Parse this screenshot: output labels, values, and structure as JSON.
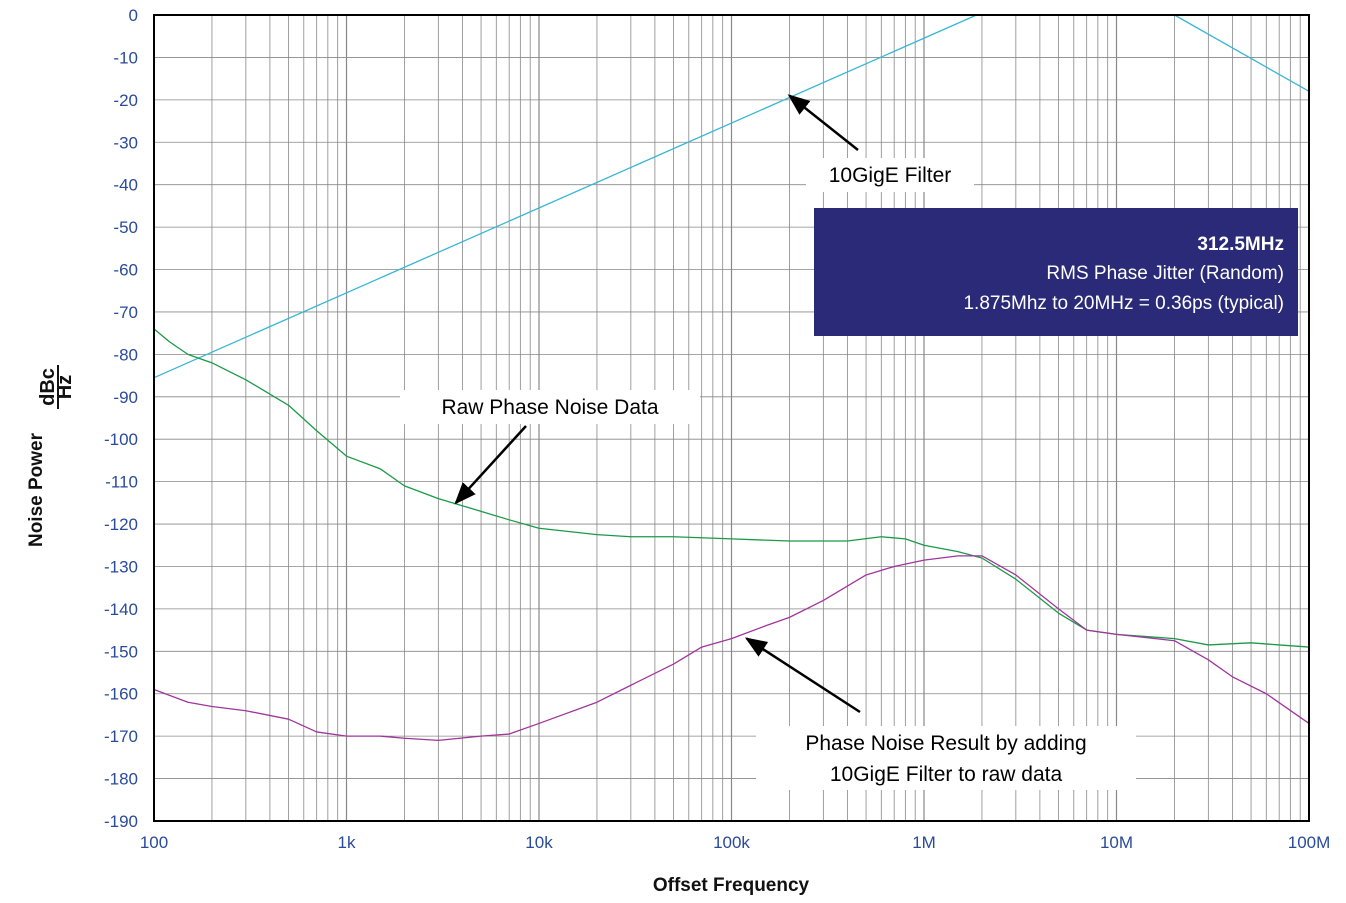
{
  "chart_data": {
    "type": "line",
    "x_scale": "log",
    "xlim": [
      100,
      100000000
    ],
    "ylim": [
      -190,
      0
    ],
    "grid": true,
    "x_ticks": [
      {
        "value": 100,
        "label": "100"
      },
      {
        "value": 1000,
        "label": "1k"
      },
      {
        "value": 10000,
        "label": "10k"
      },
      {
        "value": 100000,
        "label": "100k"
      },
      {
        "value": 1000000,
        "label": "1M"
      },
      {
        "value": 10000000,
        "label": "10M"
      },
      {
        "value": 100000000,
        "label": "100M"
      }
    ],
    "y_ticks": [
      0,
      -10,
      -20,
      -30,
      -40,
      -50,
      -60,
      -70,
      -80,
      -90,
      -100,
      -110,
      -120,
      -130,
      -140,
      -150,
      -160,
      -170,
      -180,
      -190
    ],
    "y_tick_labels": [
      "0",
      "-10",
      "-20",
      "-30",
      "-40",
      "-50",
      "-60",
      "-70",
      "-80",
      "-90",
      "-100",
      "-110",
      "-120",
      "-130",
      "-140",
      "-150",
      "-160",
      "-170",
      "-180",
      "-190"
    ],
    "ylabel": {
      "prefix": "Noise Power",
      "numerator": "dBc",
      "denominator": "Hz"
    },
    "xlabel": "Offset Frequency",
    "series": [
      {
        "color": "#3ab6d6",
        "points": [
          [
            100,
            -85.5
          ],
          [
            1875000,
            0
          ],
          [
            20000000,
            0
          ],
          [
            100000000,
            -18
          ]
        ]
      },
      {
        "color": "#1a9a48",
        "points": [
          [
            100,
            -74
          ],
          [
            120,
            -77
          ],
          [
            150,
            -80
          ],
          [
            200,
            -82
          ],
          [
            300,
            -86
          ],
          [
            500,
            -92
          ],
          [
            700,
            -98
          ],
          [
            1000,
            -104
          ],
          [
            1500,
            -107
          ],
          [
            2000,
            -111
          ],
          [
            3000,
            -114
          ],
          [
            5000,
            -117
          ],
          [
            7000,
            -119
          ],
          [
            10000,
            -121
          ],
          [
            20000,
            -122.5
          ],
          [
            30000,
            -123
          ],
          [
            50000,
            -123
          ],
          [
            100000,
            -123.5
          ],
          [
            200000,
            -124
          ],
          [
            400000,
            -124
          ],
          [
            600000,
            -123
          ],
          [
            800000,
            -123.5
          ],
          [
            1000000,
            -125
          ],
          [
            1500000,
            -126.5
          ],
          [
            2000000,
            -128
          ],
          [
            3000000,
            -133
          ],
          [
            5000000,
            -141
          ],
          [
            7000000,
            -145
          ],
          [
            10000000,
            -146
          ],
          [
            20000000,
            -147
          ],
          [
            30000000,
            -148.5
          ],
          [
            50000000,
            -148
          ],
          [
            70000000,
            -148.5
          ],
          [
            100000000,
            -149
          ]
        ]
      },
      {
        "color": "#a0359c",
        "points": [
          [
            100,
            -159
          ],
          [
            150,
            -162
          ],
          [
            200,
            -163
          ],
          [
            300,
            -164
          ],
          [
            500,
            -166
          ],
          [
            700,
            -169
          ],
          [
            1000,
            -170
          ],
          [
            1500,
            -170
          ],
          [
            2000,
            -170.5
          ],
          [
            3000,
            -171
          ],
          [
            5000,
            -170
          ],
          [
            7000,
            -169.5
          ],
          [
            10000,
            -167
          ],
          [
            20000,
            -162
          ],
          [
            30000,
            -158
          ],
          [
            50000,
            -153
          ],
          [
            70000,
            -149
          ],
          [
            100000,
            -147
          ],
          [
            150000,
            -144
          ],
          [
            200000,
            -142
          ],
          [
            300000,
            -138
          ],
          [
            500000,
            -132
          ],
          [
            700000,
            -130
          ],
          [
            1000000,
            -128.5
          ],
          [
            1500000,
            -127.5
          ],
          [
            2000000,
            -127.5
          ],
          [
            3000000,
            -132
          ],
          [
            5000000,
            -140
          ],
          [
            7000000,
            -145
          ],
          [
            10000000,
            -146
          ],
          [
            20000000,
            -147.5
          ],
          [
            30000000,
            -152
          ],
          [
            40000000,
            -156
          ],
          [
            60000000,
            -160
          ],
          [
            100000000,
            -167
          ]
        ]
      }
    ],
    "annotations": [
      {
        "lines": [
          "10GigE Filter"
        ],
        "arrow_target": [
          200000,
          -19
        ]
      },
      {
        "lines": [
          "Raw Phase Noise Data"
        ],
        "arrow_target": [
          3700,
          -115
        ]
      },
      {
        "lines": [
          "Phase Noise Result by adding",
          "10GigE Filter to raw data"
        ],
        "arrow_target": [
          120000,
          -147
        ]
      }
    ],
    "info_box": {
      "title": "312.5MHz",
      "lines": [
        "RMS Phase Jitter  (Random)",
        "1.875Mhz to 20MHz = 0.36ps (typical)"
      ],
      "background": "#2a2a78",
      "text_color": "#ffffff"
    },
    "colors": {
      "grid": "#888888",
      "tick_text": "#2a4a9a",
      "frame": "#000000"
    }
  }
}
